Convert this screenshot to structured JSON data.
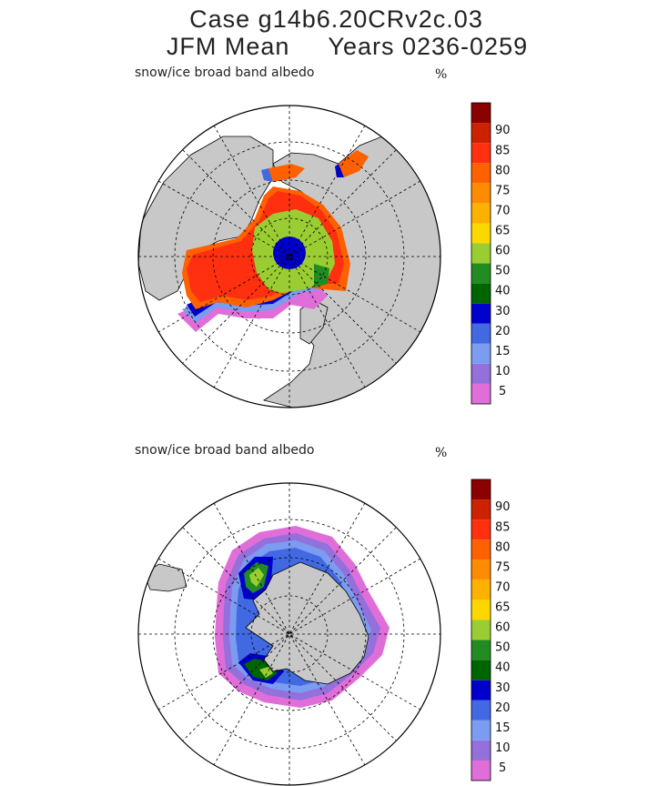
{
  "header": {
    "line1": "Case g14b6.20CRv2c.03",
    "line2": "JFM Mean     Years 0236-0259"
  },
  "colors": {
    "land": "#c8c8c8",
    "grid": "#000000",
    "levels": [
      "#e06ed8",
      "#9370db",
      "#7b9cf0",
      "#4169e1",
      "#0000cd",
      "#006400",
      "#228b22",
      "#9acd32",
      "#ffd700",
      "#ffb000",
      "#ff8c00",
      "#ff6000",
      "#ff3010",
      "#cc2200",
      "#8b0000"
    ]
  },
  "chart_data": [
    {
      "type": "heatmap",
      "projection": "polar-stereographic",
      "hemisphere": "north",
      "title": "snow/ice broad band albedo",
      "units": "%",
      "colorbar_levels": [
        5,
        10,
        15,
        20,
        30,
        40,
        50,
        60,
        65,
        70,
        75,
        80,
        85,
        90
      ]
    },
    {
      "type": "heatmap",
      "projection": "polar-stereographic",
      "hemisphere": "south",
      "title": "snow/ice broad band albedo",
      "units": "%",
      "colorbar_levels": [
        5,
        10,
        15,
        20,
        30,
        40,
        50,
        60,
        65,
        70,
        75,
        80,
        85,
        90
      ]
    }
  ]
}
